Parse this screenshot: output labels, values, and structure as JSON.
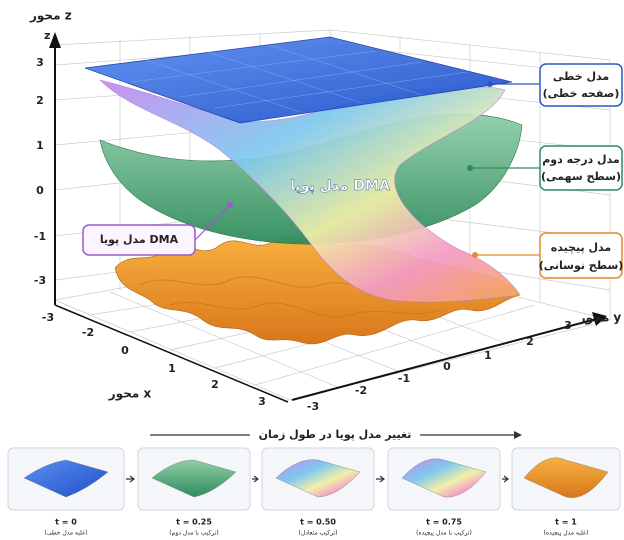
{
  "axes": {
    "z_label": "محور z",
    "z_letter": "z",
    "y_label": "محور y",
    "x_label": "محور x",
    "z_ticks": [
      "3",
      "2",
      "1",
      "0",
      "-1",
      "-3"
    ],
    "x_ticks": [
      "-3",
      "-2",
      "0",
      "1",
      "2",
      "3"
    ],
    "y_ticks": [
      "-3",
      "-2",
      "-1",
      "0",
      "1",
      "2",
      "3"
    ]
  },
  "callouts": [
    {
      "title": "مدل خطی",
      "subtitle": "(صفحه خطی)"
    },
    {
      "title": "مدل درجه دوم",
      "subtitle": "(سطح سهمی)"
    },
    {
      "title": "مدل پیچیده",
      "subtitle": "(سطح نوسانی)"
    }
  ],
  "dma_box": "مدل پویا DMA",
  "dma_surface_label": "مدل پویا DMA",
  "timeline": {
    "title": "تغییر مدل پویا در طول زمان",
    "panels": [
      {
        "t": "t = 0",
        "caption": "(غلبه مدل خطی)"
      },
      {
        "t": "t = 0.25",
        "caption": "(ترکیب با مدل دوم)"
      },
      {
        "t": "t = 0.50",
        "caption": "(ترکیب متعادل)"
      },
      {
        "t": "t = 0.75",
        "caption": "(ترکیب با مدل پیچیده)"
      },
      {
        "t": "t = 1",
        "caption": "(غلبه مدل پیچیده)"
      }
    ]
  }
}
